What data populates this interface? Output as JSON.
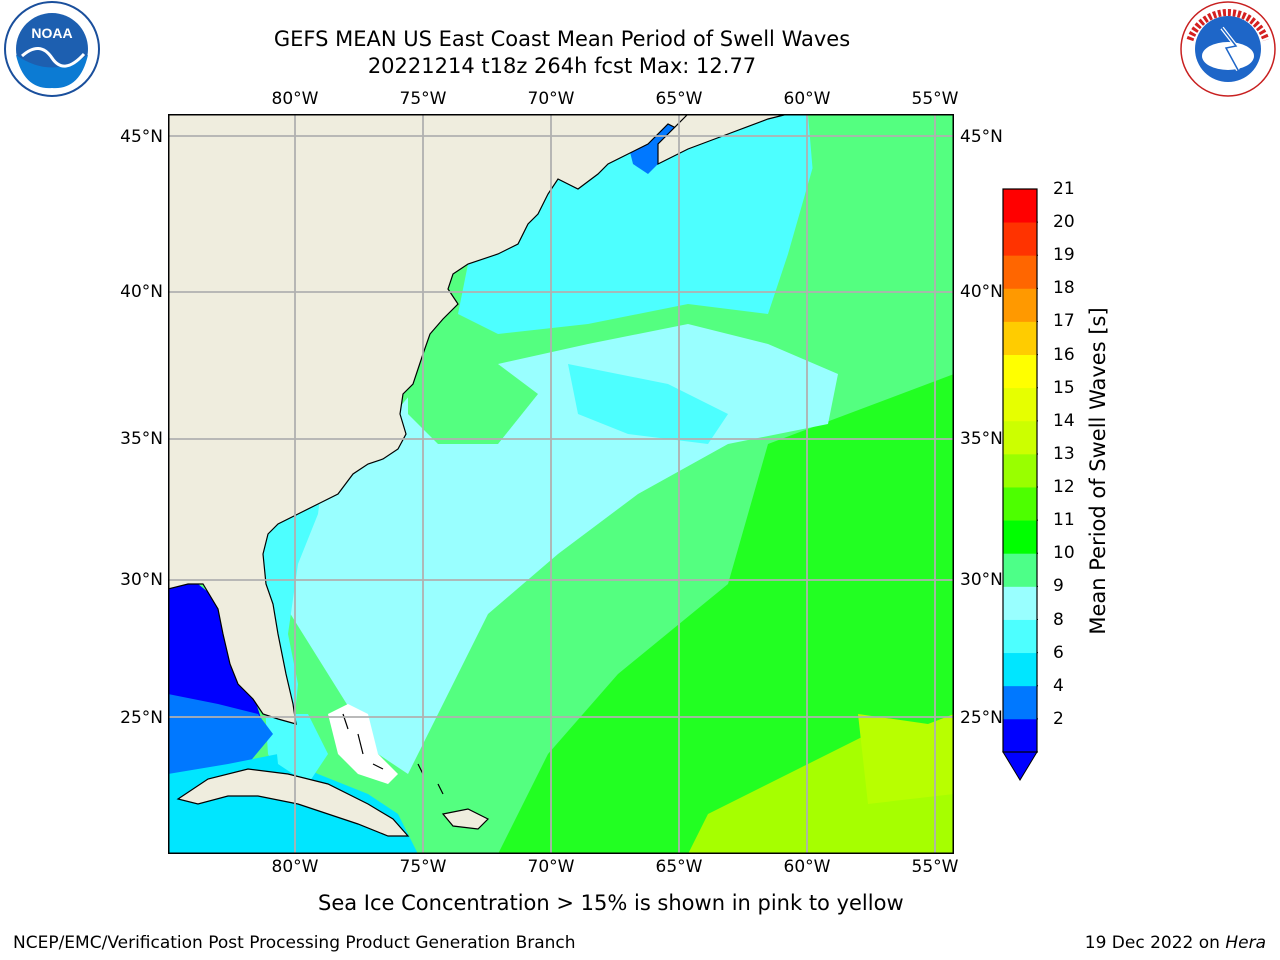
{
  "title_line1": "GEFS MEAN US East Coast Mean Period of Swell Waves",
  "title_line2": "20221214 t18z 264h fcst   Max: 12.77",
  "map": {
    "lon_labels": [
      "80°W",
      "75°W",
      "70°W",
      "65°W",
      "60°W",
      "55°W"
    ],
    "lat_labels": [
      "45°N",
      "40°N",
      "35°N",
      "30°N",
      "25°N"
    ],
    "colors": {
      "land": "#efedde",
      "ocean_default": "#54ff80",
      "coastline": "#000000",
      "gridline": "#b0b0b0"
    }
  },
  "colorbar": {
    "label": "Mean Period of Swell Waves [s]",
    "ticks": [
      "21",
      "20",
      "19",
      "18",
      "17",
      "16",
      "15",
      "14",
      "13",
      "12",
      "11",
      "10",
      "9",
      "8",
      "6",
      "4",
      "2"
    ],
    "colors_bottom_to_top": [
      "#0000ff",
      "#0078ff",
      "#00e6ff",
      "#4dffff",
      "#99ffff",
      "#4dff88",
      "#00ff00",
      "#4dff00",
      "#99ff00",
      "#ccff00",
      "#e6ff00",
      "#ffff00",
      "#ffcc00",
      "#ff9900",
      "#ff6600",
      "#ff3300",
      "#ff0000"
    ],
    "extend_color": "#0000ff"
  },
  "logos": {
    "left": "NOAA",
    "right_text": "NATIONAL WEATHER SERVICE"
  },
  "note": "Sea Ice Concentration > 15% is shown in pink to yellow",
  "footer": {
    "left": "NCEP/EMC/Verification Post Processing Product Generation Branch",
    "right_prefix": "19 Dec 2022 on ",
    "right_host": "Hera"
  }
}
